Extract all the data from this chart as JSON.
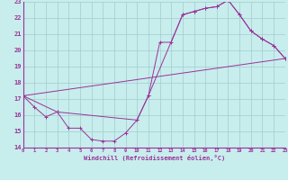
{
  "xlabel": "Windchill (Refroidissement éolien,°C)",
  "xlim": [
    0,
    23
  ],
  "ylim": [
    14,
    23
  ],
  "yticks": [
    14,
    15,
    16,
    17,
    18,
    19,
    20,
    21,
    22,
    23
  ],
  "xticks": [
    0,
    1,
    2,
    3,
    4,
    5,
    6,
    7,
    8,
    9,
    10,
    11,
    12,
    13,
    14,
    15,
    16,
    17,
    18,
    19,
    20,
    21,
    22,
    23
  ],
  "bg_color": "#c8eded",
  "grid_color": "#a0cccc",
  "line_color": "#993399",
  "line1_x": [
    0,
    1,
    2,
    3,
    4,
    5,
    6,
    7,
    8,
    9,
    10,
    11,
    12,
    13,
    14,
    15,
    16,
    17,
    18,
    19,
    20,
    21,
    22,
    23
  ],
  "line1_y": [
    17.2,
    16.5,
    15.9,
    16.2,
    15.2,
    15.2,
    14.5,
    14.4,
    14.4,
    14.9,
    15.7,
    17.2,
    20.5,
    20.5,
    22.2,
    22.4,
    22.6,
    22.7,
    23.1,
    22.2,
    21.2,
    20.7,
    20.3,
    19.5
  ],
  "line2_x": [
    0,
    3,
    10,
    11,
    14,
    15,
    16,
    17,
    18,
    19,
    20,
    21,
    22,
    23
  ],
  "line2_y": [
    17.2,
    16.2,
    15.7,
    17.2,
    22.2,
    22.4,
    22.6,
    22.7,
    23.1,
    22.2,
    21.2,
    20.7,
    20.3,
    19.5
  ],
  "line3_x": [
    0,
    23
  ],
  "line3_y": [
    17.2,
    19.5
  ]
}
